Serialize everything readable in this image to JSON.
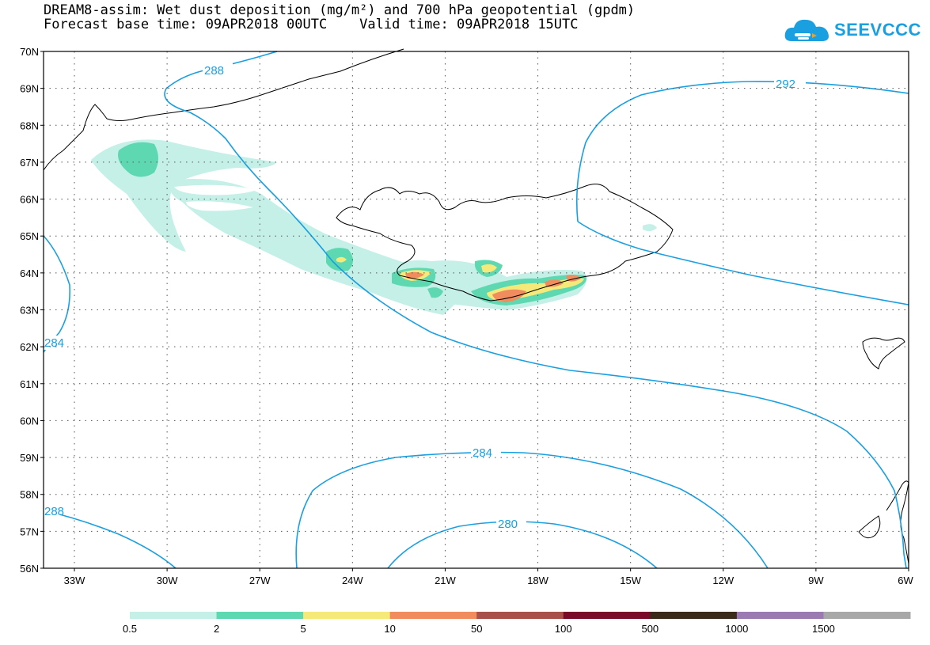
{
  "title": {
    "line1": "DREAM8-assim: Wet dust deposition (mg/m²) and 700 hPa geopotential (gpdm)",
    "line2": "Forecast base time: 09APR2018 00UTC    Valid time: 09APR2018 15UTC"
  },
  "logo": {
    "text": "SEEVCCC",
    "icon": "cloud-icon"
  },
  "axes": {
    "lat_labels": [
      "70N",
      "69N",
      "68N",
      "67N",
      "66N",
      "65N",
      "64N",
      "63N",
      "62N",
      "61N",
      "60N",
      "59N",
      "58N",
      "57N",
      "56N"
    ],
    "lon_labels": [
      "33W",
      "30W",
      "27W",
      "24W",
      "21W",
      "18W",
      "15W",
      "12W",
      "9W",
      "6W"
    ]
  },
  "contour_labels": [
    "288",
    "292",
    "284",
    "284",
    "280",
    "288"
  ],
  "colorbar": {
    "labels": [
      "0.5",
      "2",
      "5",
      "10",
      "50",
      "100",
      "500",
      "1000",
      "1500"
    ],
    "colors": [
      "#c4f0e8",
      "#5ed8b0",
      "#f5e97a",
      "#f08c5e",
      "#a8504a",
      "#7a0a2a",
      "#3a2a1a",
      "#9a7ab0",
      "#a8a8a8"
    ]
  },
  "colors": {
    "contour": "#1a9fe0",
    "coastline": "#000000",
    "frame": "#000000"
  }
}
